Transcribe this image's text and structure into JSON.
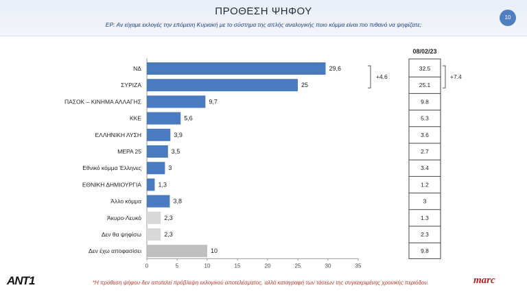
{
  "header": {
    "title": "ΠΡΟΘΕΣΗ ΨΗΦΟΥ",
    "question": "ΕΡ: Αν είχαμε εκλογές την επόμενη Κυριακή με το σύστημα της απλής αναλογικής ποιο κόμμα είναι πιο πιθανό να ψηφίζατε;",
    "page_number": "10"
  },
  "chart_data": {
    "type": "bar",
    "orientation": "horizontal",
    "categories": [
      "ΝΔ",
      "ΣΥΡΙΖΑ",
      "ΠΑΣΟΚ – ΚΙΝΗΜΑ ΑΛΛΑΓΗΣ",
      "ΚΚΕ",
      "ΕΛΛΗΝΙΚΗ ΛΥΣΗ",
      "ΜΕΡΑ 25",
      "Εθνικό κόμμα Έλληνες",
      "ΕΘΝΙΚΗ ΔΗΜΙΟΥΡΓΙΑ",
      "Άλλο κόμμα",
      "Άκυρο-Λευκό",
      "Δεν θα ψηφίσω",
      "Δεν έχω αποφασίσει"
    ],
    "values": [
      29.6,
      25,
      9.7,
      5.6,
      3.9,
      3.5,
      3,
      1.3,
      3.8,
      2.3,
      2.3,
      10
    ],
    "value_labels": [
      "29,6",
      "25",
      "9,7",
      "5,6",
      "3,9",
      "3,5",
      "3",
      "1,3",
      "3,8",
      "2,3",
      "2,3",
      "10"
    ],
    "bar_colors": [
      "#4a7bc0",
      "#4a7bc0",
      "#4a7bc0",
      "#4a7bc0",
      "#4a7bc0",
      "#4a7bc0",
      "#4a7bc0",
      "#4a7bc0",
      "#4a7bc0",
      "#d9d9d9",
      "#d9d9d9",
      "#bfbfbf"
    ],
    "xlim": [
      0,
      35
    ],
    "xticks": [
      0,
      5,
      10,
      15,
      20,
      25,
      30,
      35
    ],
    "grid": false,
    "title": "",
    "xlabel": "",
    "ylabel": "",
    "gap_annotation": {
      "label": "+4.6",
      "between": [
        "ΝΔ",
        "ΣΥΡΙΖΑ"
      ]
    },
    "comparison": {
      "header": "08/02/23",
      "values": [
        "32.5",
        "25.1",
        "9.8",
        "5.3",
        "3.6",
        "2.7",
        "3.4",
        "1.2",
        "3",
        "1.3",
        "2.3",
        "9.8"
      ],
      "gap_annotation": {
        "label": "+7.4",
        "between": [
          "ΝΔ",
          "ΣΥΡΙΖΑ"
        ]
      }
    }
  },
  "footnote": "*Η πρόθεση ψήφου δεν αποτελεί πρόβλεψη εκλογικού αποτελέσματος, αλλά καταγραφή των τάσεων της συγκεκριμένης χρονικής περιόδου.",
  "logos": {
    "left": "ANT1",
    "right": "marc"
  },
  "colors": {
    "bar_primary": "#4a7bc0",
    "bar_grey_light": "#d9d9d9",
    "bar_grey": "#bfbfbf",
    "footnote": "#c0392b",
    "question": "#1d3f8a"
  }
}
